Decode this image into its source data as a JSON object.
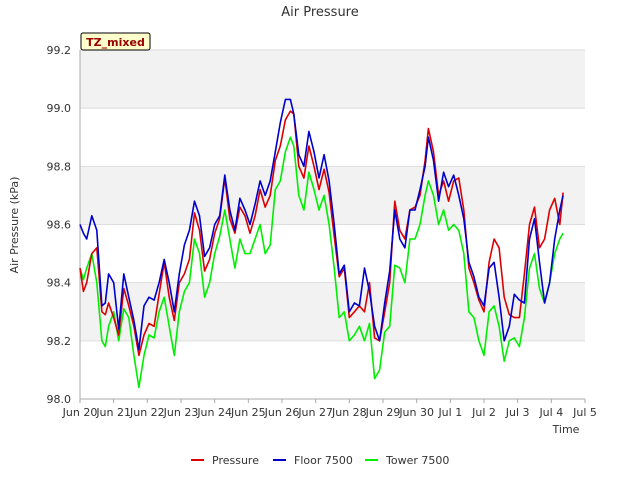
{
  "chart_data": {
    "type": "line",
    "title": "Air Pressure",
    "xlabel": "Time",
    "ylabel": "Air Pressure (kPa)",
    "badge": "TZ_mixed",
    "xlim": [
      0,
      15
    ],
    "ylim": [
      98.0,
      99.2
    ],
    "x_tick_labels": [
      "Jun 20",
      "Jun 21",
      "Jun 22",
      "Jun 23",
      "Jun 24",
      "Jun 25",
      "Jun 26",
      "Jun 27",
      "Jun 28",
      "Jun 29",
      "Jun 30",
      "Jul 1",
      "Jul 2",
      "Jul 3",
      "Jul 4",
      "Jul 5"
    ],
    "y_ticks": [
      "98.0",
      "98.2",
      "98.4",
      "98.6",
      "98.8",
      "99.0",
      "99.2"
    ],
    "grid": true,
    "legend_position": "bottom",
    "series": [
      {
        "name": "Pressure",
        "color": "#dd0000",
        "x": [
          0.0,
          0.1,
          0.2,
          0.35,
          0.5,
          0.65,
          0.75,
          0.85,
          1.0,
          1.15,
          1.3,
          1.45,
          1.6,
          1.75,
          1.9,
          2.05,
          2.2,
          2.35,
          2.5,
          2.65,
          2.8,
          2.95,
          3.1,
          3.25,
          3.4,
          3.55,
          3.7,
          3.85,
          4.0,
          4.15,
          4.3,
          4.45,
          4.6,
          4.75,
          4.9,
          5.05,
          5.2,
          5.35,
          5.5,
          5.65,
          5.8,
          5.95,
          6.1,
          6.25,
          6.35,
          6.5,
          6.65,
          6.8,
          6.95,
          7.1,
          7.25,
          7.4,
          7.55,
          7.7,
          7.85,
          8.0,
          8.15,
          8.3,
          8.45,
          8.6,
          8.75,
          8.9,
          9.05,
          9.2,
          9.35,
          9.5,
          9.65,
          9.8,
          9.95,
          10.1,
          10.25,
          10.35,
          10.5,
          10.65,
          10.8,
          10.95,
          11.1,
          11.25,
          11.4,
          11.55,
          11.7,
          11.85,
          12.0,
          12.15,
          12.3,
          12.45,
          12.6,
          12.75,
          12.9,
          13.05,
          13.2,
          13.35,
          13.5,
          13.65,
          13.8,
          13.95,
          14.1,
          14.25,
          14.35
        ],
        "values": [
          98.45,
          98.37,
          98.4,
          98.5,
          98.52,
          98.3,
          98.29,
          98.33,
          98.28,
          98.22,
          98.38,
          98.32,
          98.25,
          98.15,
          98.22,
          98.26,
          98.25,
          98.36,
          98.47,
          98.35,
          98.27,
          98.4,
          98.43,
          98.48,
          98.64,
          98.58,
          98.44,
          98.48,
          98.57,
          98.62,
          98.76,
          98.62,
          98.57,
          98.66,
          98.63,
          98.57,
          98.63,
          98.72,
          98.66,
          98.7,
          98.82,
          98.87,
          98.96,
          98.99,
          98.98,
          98.8,
          98.76,
          98.87,
          98.8,
          98.72,
          98.79,
          98.71,
          98.56,
          98.42,
          98.45,
          98.28,
          98.3,
          98.32,
          98.3,
          98.4,
          98.21,
          98.2,
          98.3,
          98.4,
          98.68,
          98.58,
          98.55,
          98.65,
          98.66,
          98.7,
          98.82,
          98.93,
          98.85,
          98.7,
          98.75,
          98.68,
          98.75,
          98.76,
          98.65,
          98.45,
          98.4,
          98.34,
          98.3,
          98.47,
          98.55,
          98.52,
          98.35,
          98.29,
          98.28,
          98.28,
          98.43,
          98.6,
          98.66,
          98.52,
          98.55,
          98.65,
          98.69,
          98.6,
          98.71
        ]
      },
      {
        "name": "Floor 7500",
        "color": "#0000cc",
        "x": [
          0.0,
          0.1,
          0.2,
          0.35,
          0.5,
          0.65,
          0.75,
          0.85,
          1.0,
          1.15,
          1.3,
          1.45,
          1.6,
          1.75,
          1.9,
          2.05,
          2.2,
          2.35,
          2.5,
          2.65,
          2.8,
          2.95,
          3.1,
          3.25,
          3.4,
          3.55,
          3.7,
          3.85,
          4.0,
          4.15,
          4.3,
          4.45,
          4.6,
          4.75,
          4.9,
          5.05,
          5.2,
          5.35,
          5.5,
          5.65,
          5.8,
          5.95,
          6.1,
          6.25,
          6.35,
          6.5,
          6.65,
          6.8,
          6.95,
          7.1,
          7.25,
          7.4,
          7.55,
          7.7,
          7.85,
          8.0,
          8.15,
          8.3,
          8.45,
          8.6,
          8.75,
          8.9,
          9.05,
          9.2,
          9.35,
          9.5,
          9.65,
          9.8,
          9.95,
          10.1,
          10.25,
          10.35,
          10.5,
          10.65,
          10.8,
          10.95,
          11.1,
          11.25,
          11.4,
          11.55,
          11.7,
          11.85,
          12.0,
          12.15,
          12.3,
          12.45,
          12.6,
          12.75,
          12.9,
          13.05,
          13.2,
          13.35,
          13.5,
          13.65,
          13.8,
          13.95,
          14.1,
          14.25,
          14.35
        ],
        "values": [
          98.6,
          98.57,
          98.55,
          98.63,
          98.58,
          98.32,
          98.33,
          98.43,
          98.4,
          98.24,
          98.43,
          98.35,
          98.27,
          98.17,
          98.32,
          98.35,
          98.34,
          98.4,
          98.48,
          98.4,
          98.3,
          98.43,
          98.53,
          98.58,
          98.68,
          98.63,
          98.49,
          98.52,
          98.6,
          98.63,
          98.77,
          98.65,
          98.58,
          98.69,
          98.65,
          98.6,
          98.67,
          98.75,
          98.7,
          98.75,
          98.85,
          98.95,
          99.03,
          99.03,
          98.98,
          98.84,
          98.8,
          98.92,
          98.85,
          98.76,
          98.84,
          98.75,
          98.6,
          98.43,
          98.46,
          98.3,
          98.33,
          98.32,
          98.45,
          98.37,
          98.25,
          98.2,
          98.33,
          98.44,
          98.65,
          98.55,
          98.52,
          98.65,
          98.65,
          98.72,
          98.8,
          98.9,
          98.82,
          98.68,
          98.78,
          98.73,
          98.77,
          98.7,
          98.62,
          98.47,
          98.42,
          98.35,
          98.32,
          98.45,
          98.47,
          98.35,
          98.2,
          98.25,
          98.36,
          98.34,
          98.33,
          98.55,
          98.62,
          98.47,
          98.33,
          98.4,
          98.55,
          98.65,
          98.7
        ]
      },
      {
        "name": "Tower 7500",
        "color": "#00ee00",
        "x": [
          0.0,
          0.1,
          0.2,
          0.35,
          0.5,
          0.65,
          0.75,
          0.85,
          1.0,
          1.15,
          1.3,
          1.45,
          1.6,
          1.75,
          1.9,
          2.05,
          2.2,
          2.35,
          2.5,
          2.65,
          2.8,
          2.95,
          3.1,
          3.25,
          3.4,
          3.55,
          3.7,
          3.85,
          4.0,
          4.15,
          4.3,
          4.45,
          4.6,
          4.75,
          4.9,
          5.05,
          5.2,
          5.35,
          5.5,
          5.65,
          5.8,
          5.95,
          6.1,
          6.25,
          6.35,
          6.5,
          6.65,
          6.8,
          6.95,
          7.1,
          7.25,
          7.4,
          7.55,
          7.7,
          7.85,
          8.0,
          8.15,
          8.3,
          8.45,
          8.6,
          8.75,
          8.9,
          9.05,
          9.2,
          9.35,
          9.5,
          9.65,
          9.8,
          9.95,
          10.1,
          10.25,
          10.35,
          10.5,
          10.65,
          10.8,
          10.95,
          11.1,
          11.25,
          11.4,
          11.55,
          11.7,
          11.85,
          12.0,
          12.15,
          12.3,
          12.45,
          12.6,
          12.75,
          12.9,
          13.05,
          13.2,
          13.35,
          13.5,
          13.65,
          13.8,
          13.95,
          14.1,
          14.25,
          14.35
        ],
        "values": [
          98.45,
          98.41,
          98.45,
          98.5,
          98.4,
          98.2,
          98.18,
          98.25,
          98.3,
          98.2,
          98.31,
          98.28,
          98.15,
          98.04,
          98.15,
          98.22,
          98.21,
          98.3,
          98.35,
          98.25,
          98.15,
          98.3,
          98.37,
          98.4,
          98.55,
          98.5,
          98.35,
          98.4,
          98.5,
          98.56,
          98.65,
          98.55,
          98.45,
          98.55,
          98.5,
          98.5,
          98.55,
          98.6,
          98.5,
          98.53,
          98.72,
          98.75,
          98.85,
          98.9,
          98.87,
          98.7,
          98.65,
          98.78,
          98.72,
          98.65,
          98.7,
          98.6,
          98.45,
          98.28,
          98.3,
          98.2,
          98.22,
          98.25,
          98.2,
          98.26,
          98.07,
          98.1,
          98.23,
          98.25,
          98.46,
          98.45,
          98.4,
          98.55,
          98.55,
          98.6,
          98.7,
          98.75,
          98.7,
          98.6,
          98.65,
          98.58,
          98.6,
          98.58,
          98.5,
          98.3,
          98.28,
          98.2,
          98.15,
          98.3,
          98.32,
          98.25,
          98.13,
          98.2,
          98.21,
          98.18,
          98.28,
          98.45,
          98.5,
          98.38,
          98.33,
          98.4,
          98.5,
          98.55,
          98.57
        ]
      }
    ]
  }
}
